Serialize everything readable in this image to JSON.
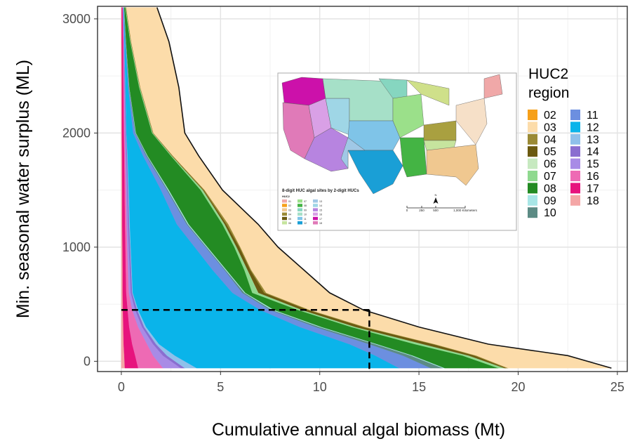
{
  "chart_data": {
    "type": "area",
    "title": "",
    "xlabel": "Cumulative annual algal biomass (Mt)",
    "ylabel": "Min. seasonal water surplus (ML)",
    "xlim": [
      -1.2,
      25.5
    ],
    "ylim": [
      -90,
      3110
    ],
    "xticks": [
      0,
      5,
      10,
      15,
      20,
      25
    ],
    "yticks": [
      0,
      1000,
      2000,
      3000
    ],
    "grid": true,
    "legend_position": "right",
    "legend_title": [
      "HUC2",
      "region"
    ],
    "y": [
      3100,
      2800,
      2400,
      2000,
      1800,
      1500,
      1200,
      1000,
      800,
      600,
      450,
      300,
      150,
      50,
      -60
    ],
    "series": [
      {
        "name": "18",
        "color": "#f4a6a6",
        "cum": [
          0.02,
          0.02,
          0.03,
          0.03,
          0.04,
          0.05,
          0.05,
          0.06,
          0.07,
          0.07,
          0.08,
          0.1,
          0.12,
          0.15,
          0.18
        ]
      },
      {
        "name": "17",
        "color": "#e7137d",
        "cum": [
          0.07,
          0.09,
          0.11,
          0.13,
          0.15,
          0.17,
          0.19,
          0.21,
          0.23,
          0.25,
          0.32,
          0.4,
          0.55,
          0.7,
          0.85
        ]
      },
      {
        "name": "16",
        "color": "#ee6ab4",
        "cum": [
          0.08,
          0.11,
          0.14,
          0.17,
          0.2,
          0.24,
          0.27,
          0.3,
          0.34,
          0.38,
          0.55,
          0.85,
          1.3,
          1.6,
          2.1
        ]
      },
      {
        "name": "15",
        "color": "#a88be6",
        "cum": [
          0.09,
          0.13,
          0.17,
          0.21,
          0.25,
          0.3,
          0.34,
          0.38,
          0.43,
          0.48,
          0.7,
          1.05,
          1.6,
          2.1,
          3.0
        ]
      },
      {
        "name": "14",
        "color": "#8a6ed0",
        "cum": [
          0.1,
          0.15,
          0.2,
          0.25,
          0.3,
          0.35,
          0.4,
          0.45,
          0.5,
          0.55,
          0.8,
          1.15,
          1.75,
          2.3,
          3.2
        ]
      },
      {
        "name": "13",
        "color": "#8fc0ea",
        "cum": [
          0.11,
          0.16,
          0.21,
          0.26,
          0.32,
          0.38,
          0.43,
          0.48,
          0.53,
          0.58,
          0.85,
          1.25,
          1.9,
          2.7,
          3.8
        ]
      },
      {
        "name": "12",
        "color": "#0ab4ea",
        "cum": [
          0.12,
          0.2,
          0.35,
          0.6,
          1.1,
          2.0,
          2.8,
          3.7,
          4.6,
          5.6,
          7.0,
          9.0,
          11.5,
          12.8,
          14.0
        ]
      },
      {
        "name": "11",
        "color": "#6c8fe0",
        "cum": [
          0.13,
          0.22,
          0.38,
          0.7,
          1.25,
          2.3,
          3.3,
          4.25,
          5.2,
          6.1,
          7.5,
          9.8,
          12.5,
          14.2,
          15.6
        ]
      },
      {
        "name": "10",
        "color": "#5c8b84",
        "cum": [
          0.14,
          0.23,
          0.4,
          0.72,
          1.3,
          2.35,
          3.35,
          4.3,
          5.25,
          6.2,
          7.6,
          10.0,
          12.8,
          14.6,
          16.2
        ]
      },
      {
        "name": "09",
        "color": "#a8e6e6",
        "cum": [
          0.15,
          0.24,
          0.41,
          0.74,
          1.33,
          2.4,
          3.4,
          4.35,
          5.3,
          6.25,
          7.7,
          10.1,
          12.9,
          14.7,
          16.3
        ]
      },
      {
        "name": "08",
        "color": "#238b23",
        "cum": [
          0.2,
          0.45,
          0.9,
          1.55,
          2.5,
          4.0,
          5.1,
          5.7,
          6.2,
          6.6,
          8.9,
          11.6,
          14.8,
          17.2,
          19.0
        ]
      },
      {
        "name": "07",
        "color": "#8fd98f",
        "cum": [
          0.22,
          0.47,
          0.93,
          1.58,
          2.54,
          4.1,
          5.2,
          5.8,
          6.35,
          6.9,
          9.1,
          11.8,
          15.2,
          17.5,
          19.3
        ]
      },
      {
        "name": "06",
        "color": "#c7e9c0",
        "cum": [
          0.23,
          0.48,
          0.94,
          1.59,
          2.55,
          4.11,
          5.21,
          5.81,
          6.36,
          6.91,
          9.11,
          11.81,
          15.21,
          17.51,
          19.31
        ]
      },
      {
        "name": "05",
        "color": "#6b5a10",
        "cum": [
          0.24,
          0.49,
          0.95,
          1.6,
          2.57,
          4.15,
          5.3,
          5.95,
          6.5,
          7.2,
          9.4,
          12.2,
          15.7,
          17.8,
          19.4
        ]
      },
      {
        "name": "04",
        "color": "#9a8a35",
        "cum": [
          0.25,
          0.5,
          0.96,
          1.62,
          2.6,
          4.2,
          5.4,
          6.0,
          6.55,
          7.3,
          9.5,
          12.3,
          15.8,
          17.9,
          19.5
        ]
      },
      {
        "name": "03",
        "color": "#fcdcaa",
        "cum": [
          1.8,
          2.4,
          2.9,
          3.2,
          3.9,
          5.1,
          6.9,
          7.9,
          9.2,
          10.5,
          12.2,
          15.0,
          18.5,
          22.5,
          24.7
        ]
      },
      {
        "name": "02",
        "color": "#f6a01a",
        "cum": [
          1.8,
          2.4,
          2.9,
          3.2,
          3.9,
          5.1,
          6.9,
          7.9,
          9.2,
          10.5,
          12.2,
          15.0,
          18.5,
          22.5,
          24.7
        ]
      }
    ],
    "reference_lines": {
      "x": 12.5,
      "y": 450,
      "style": "dashed"
    },
    "inset_map": {
      "title": "8-digit HUC algal sites by 2-digit HUCs",
      "legend_header": "HUC2",
      "legend_items": [
        "01",
        "02",
        "03",
        "04",
        "05",
        "06",
        "07",
        "08",
        "09",
        "10",
        "11",
        "12",
        "13",
        "14",
        "15",
        "16",
        "17",
        "18"
      ],
      "scale_labels": [
        "0",
        "250",
        "500",
        "1,000 Kilometers"
      ],
      "north_label": "N"
    }
  }
}
